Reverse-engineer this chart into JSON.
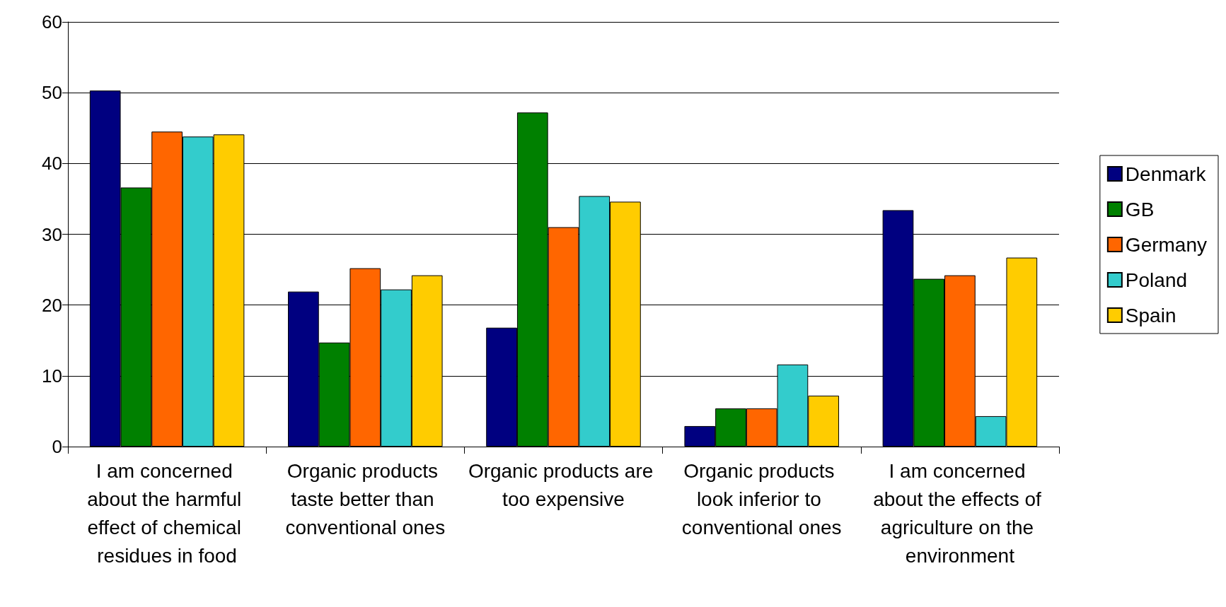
{
  "chart_data": {
    "type": "bar",
    "categories": [
      "I am concerned about the harmful effect of chemical residues in food",
      "Organic products taste better than conventional ones",
      "Organic products are too expensive",
      "Organic products look inferior to conventional ones",
      "I am concerned about the effects of agriculture on the environment"
    ],
    "series": [
      {
        "name": "Denmark",
        "color": "#000080",
        "values": [
          50.3,
          21.9,
          16.8,
          2.9,
          33.4
        ]
      },
      {
        "name": "GB",
        "color": "#008000",
        "values": [
          36.6,
          14.7,
          47.2,
          5.4,
          23.7
        ]
      },
      {
        "name": "Germany",
        "color": "#ff6600",
        "values": [
          44.5,
          25.2,
          31.0,
          5.4,
          24.2
        ]
      },
      {
        "name": "Poland",
        "color": "#33cccc",
        "values": [
          43.8,
          22.2,
          35.4,
          11.6,
          4.3
        ]
      },
      {
        "name": "Spain",
        "color": "#ffcc00",
        "values": [
          44.1,
          24.2,
          34.6,
          7.2,
          26.7
        ]
      }
    ],
    "ylim": [
      0,
      60
    ],
    "yticks": [
      0,
      10,
      20,
      30,
      40,
      50,
      60
    ],
    "grid": "y",
    "legend": "right"
  }
}
